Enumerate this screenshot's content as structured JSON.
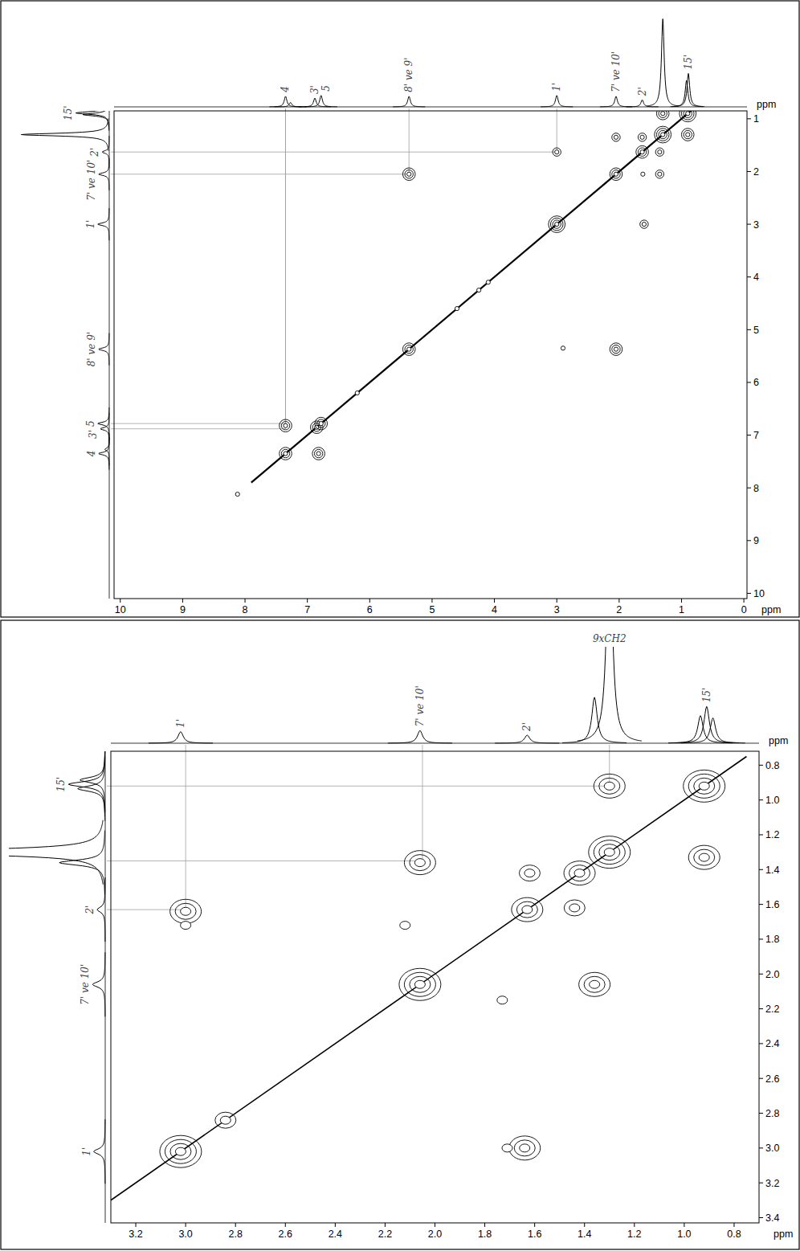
{
  "chart_data": [
    {
      "type": "cosy",
      "x_label": "ppm",
      "y_label": "ppm",
      "xlim": [
        10.1,
        -0.05
      ],
      "ylim": [
        0.85,
        10.1
      ],
      "xticks": [
        10,
        9,
        8,
        7,
        6,
        5,
        4,
        3,
        2,
        1,
        0
      ],
      "yticks": [
        1,
        2,
        3,
        4,
        5,
        6,
        7,
        8,
        9,
        10
      ],
      "intensity_lim": [
        0,
        1.05
      ],
      "spectrum": {
        "x": [
          7.35,
          7.27,
          6.88,
          6.78,
          5.37,
          3.0,
          2.05,
          1.63,
          1.3,
          0.92,
          0.89
        ],
        "values": [
          0.12,
          0.05,
          0.1,
          0.13,
          0.12,
          0.13,
          0.12,
          0.08,
          1.0,
          0.3,
          0.38
        ]
      },
      "peak_labels": [
        {
          "x": 7.35,
          "label": "4"
        },
        {
          "x": 6.88,
          "label": "3'"
        },
        {
          "x": 6.78,
          "label": "5"
        },
        {
          "x": 5.37,
          "label": "8' ve 9'"
        },
        {
          "x": 3.0,
          "label": "1'"
        },
        {
          "x": 2.05,
          "label": "7' ve 10'"
        },
        {
          "x": 1.63,
          "label": "2'"
        },
        {
          "x": 0.89,
          "label": "15'"
        }
      ],
      "side_labels": [
        {
          "y": 0.89,
          "label": "15'"
        },
        {
          "y": 1.63,
          "label": "2'"
        },
        {
          "y": 2.05,
          "label": "7' ve 10'"
        },
        {
          "y": 3.0,
          "label": "1'"
        },
        {
          "y": 5.37,
          "label": "8' ve 9'"
        },
        {
          "y": 6.78,
          "label": "5"
        },
        {
          "y": 6.88,
          "label": "3'"
        },
        {
          "y": 7.35,
          "label": "4"
        }
      ],
      "diagonal": [
        7.9,
        0.5
      ],
      "cross_peaks": {
        "x": [
          7.35,
          6.85,
          6.78,
          5.37,
          3.0,
          2.05,
          1.63,
          1.3,
          0.9,
          7.35,
          6.82,
          5.37,
          2.05,
          2.9,
          3.0,
          1.6,
          1.3,
          0.9,
          2.05,
          1.35,
          1.63,
          1.35,
          1.62,
          8.12,
          6.2,
          4.6,
          4.25,
          4.1
        ],
        "y": [
          7.35,
          6.85,
          6.78,
          5.37,
          3.0,
          2.05,
          1.63,
          1.3,
          0.9,
          6.82,
          7.35,
          2.05,
          5.37,
          5.35,
          1.63,
          3.0,
          0.9,
          1.3,
          1.35,
          2.05,
          1.35,
          1.63,
          2.05,
          8.12,
          6.2,
          4.6,
          4.25,
          4.1
        ],
        "levels": [
          3,
          3,
          3,
          3,
          4,
          3,
          3,
          4,
          4,
          3,
          3,
          3,
          3,
          1,
          2,
          2,
          3,
          3,
          2,
          2,
          2,
          2,
          1,
          1,
          1,
          1,
          1,
          1
        ]
      },
      "guides": {
        "x": [
          7.35,
          7.35,
          5.37,
          3.0
        ],
        "y": [
          6.78,
          6.88,
          2.05,
          1.63
        ]
      }
    },
    {
      "type": "cosy",
      "x_label": "ppm",
      "y_label": "ppm",
      "xlim": [
        3.3,
        0.7
      ],
      "ylim": [
        0.72,
        3.43
      ],
      "xticks": [
        3.2,
        {
          "value": 3,
          "label": "3.0"
        },
        2.8,
        2.6,
        2.4,
        2.2,
        {
          "value": 2,
          "label": "2.0"
        },
        1.8,
        1.6,
        1.4,
        1.2,
        {
          "value": 1,
          "label": "1.0"
        },
        0.8
      ],
      "yticks": [
        0.8,
        {
          "value": 1,
          "label": "1.0"
        },
        1.2,
        1.4,
        1.6,
        1.8,
        {
          "value": 2,
          "label": "2.0"
        },
        2.2,
        2.4,
        2.6,
        2.8,
        {
          "value": 3,
          "label": "3.0"
        },
        3.2,
        3.4
      ],
      "intensity_lim": [
        0,
        0.42
      ],
      "spectrum": {
        "x": [
          3.02,
          2.06,
          1.63,
          1.36,
          1.3,
          0.935,
          0.91,
          0.885
        ],
        "values": [
          0.05,
          0.055,
          0.035,
          0.2,
          1.0,
          0.12,
          0.16,
          0.11
        ]
      },
      "peak_labels": [
        {
          "x": 3.02,
          "label": "1'"
        },
        {
          "x": 2.06,
          "label": "7' ve 10'"
        },
        {
          "x": 1.63,
          "label": "2'"
        },
        {
          "x": 1.3,
          "label": "9xCH2"
        },
        {
          "x": 0.91,
          "label": "15'"
        }
      ],
      "side_labels": [
        {
          "y": 0.91,
          "label": "15'"
        },
        {
          "y": 1.63,
          "label": "2'"
        },
        {
          "y": 2.06,
          "label": "7' ve 10'"
        },
        {
          "y": 3.02,
          "label": "1'"
        }
      ],
      "diagonal": [
        3.3,
        0.75
      ],
      "cross_peaks": {
        "x": [
          3.02,
          2.06,
          1.63,
          1.3,
          0.92,
          1.42,
          3.0,
          1.64,
          1.71,
          3.0,
          2.06,
          1.36,
          1.3,
          0.92,
          1.62,
          1.44,
          2.12,
          1.73,
          2.84
        ],
        "y": [
          3.02,
          2.06,
          1.63,
          1.3,
          0.92,
          1.42,
          1.64,
          3.0,
          3.0,
          1.72,
          1.36,
          2.06,
          0.92,
          1.33,
          1.42,
          1.62,
          1.72,
          2.15,
          2.84
        ],
        "levels": [
          4,
          4,
          3,
          4,
          4,
          3,
          3,
          3,
          1,
          1,
          3,
          3,
          3,
          3,
          2,
          2,
          1,
          1,
          2
        ]
      },
      "guides": {
        "x": [
          3.0,
          2.05,
          1.3
        ],
        "y": [
          1.63,
          1.35,
          0.92
        ]
      }
    }
  ]
}
